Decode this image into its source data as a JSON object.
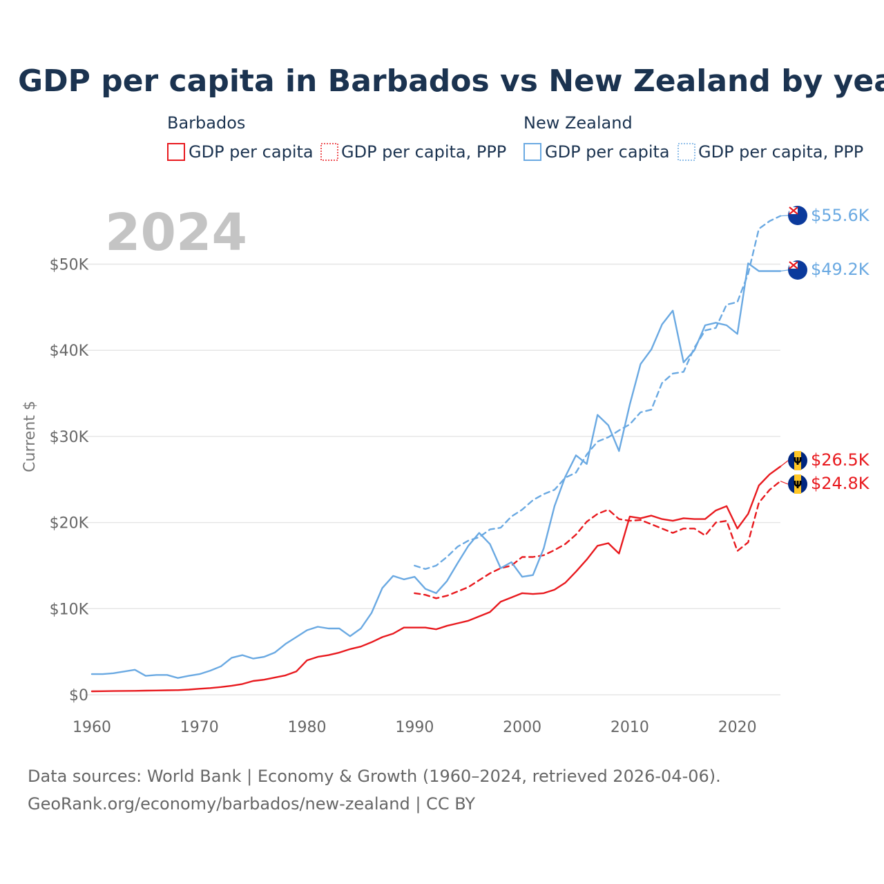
{
  "title": "GDP per capita in Barbados vs New Zealand by year",
  "year_watermark": "2024",
  "colors": {
    "barbados": "#e8191e",
    "new_zealand": "#6aa9e2",
    "title": "#1b3350"
  },
  "legend": {
    "barbados": {
      "title": "Barbados",
      "gdp": "GDP per capita",
      "ppp": "GDP per capita, PPP"
    },
    "new_zealand": {
      "title": "New Zealand",
      "gdp": "GDP per capita",
      "ppp": "GDP per capita, PPP"
    }
  },
  "end_labels": {
    "nz_ppp": "$55.6K",
    "nz_gdp": "$49.2K",
    "bb_gdp": "$26.5K",
    "bb_ppp": "$24.8K"
  },
  "source": {
    "line1": "Data sources: World Bank | Economy & Growth (1960–2024, retrieved 2026-04-06).",
    "line2": "GeoRank.org/economy/barbados/new-zealand | CC BY"
  },
  "chart_data": {
    "type": "line",
    "title": "GDP per capita in Barbados vs New Zealand by year",
    "xlabel": "",
    "ylabel": "Current $",
    "xlim": [
      1960,
      2024
    ],
    "ylim": [
      0,
      55600
    ],
    "x_ticks": [
      1960,
      1970,
      1980,
      1990,
      2000,
      2010,
      2020
    ],
    "y_ticks": [
      {
        "value": 0,
        "label": "$0"
      },
      {
        "value": 10000,
        "label": "$10K"
      },
      {
        "value": 20000,
        "label": "$20K"
      },
      {
        "value": 30000,
        "label": "$30K"
      },
      {
        "value": 40000,
        "label": "$40K"
      },
      {
        "value": 50000,
        "label": "$50K"
      }
    ],
    "grid": true,
    "series": [
      {
        "name": "Barbados GDP per capita",
        "key": "bb_gdp",
        "country": "barbados",
        "dash": false,
        "start_year": 1960,
        "values": [
          400,
          420,
          430,
          450,
          460,
          480,
          500,
          520,
          540,
          600,
          700,
          780,
          900,
          1050,
          1250,
          1600,
          1750,
          2000,
          2250,
          2700,
          4000,
          4400,
          4600,
          4900,
          5300,
          5600,
          6100,
          6700,
          7100,
          7800,
          7800,
          7800,
          7600,
          8000,
          8300,
          8600,
          9100,
          9600,
          10800,
          11300,
          11800,
          11700,
          11800,
          12200,
          13000,
          14300,
          15700,
          17300,
          17600,
          16400,
          20700,
          20500,
          20800,
          20400,
          20200,
          20500,
          20400,
          20400,
          21400,
          21900,
          19300,
          21000,
          24300,
          25600,
          26500
        ]
      },
      {
        "name": "Barbados GDP per capita, PPP",
        "key": "bb_ppp",
        "country": "barbados",
        "dash": true,
        "start_year": 1990,
        "values": [
          11800,
          11600,
          11200,
          11500,
          12000,
          12500,
          13300,
          14100,
          14700,
          15000,
          16000,
          16000,
          16200,
          16800,
          17500,
          18600,
          20100,
          21000,
          21500,
          20400,
          20200,
          20300,
          19800,
          19300,
          18800,
          19300,
          19300,
          18500,
          20000,
          20200,
          16700,
          17700,
          22300,
          23800,
          24800
        ]
      },
      {
        "name": "New Zealand GDP per capita",
        "key": "nz_gdp",
        "country": "new_zealand",
        "dash": false,
        "start_year": 1960,
        "values": [
          2400,
          2400,
          2500,
          2700,
          2900,
          2200,
          2300,
          2300,
          1950,
          2200,
          2400,
          2800,
          3300,
          4300,
          4600,
          4200,
          4400,
          4900,
          5900,
          6700,
          7500,
          7900,
          7700,
          7700,
          6800,
          7700,
          9500,
          12400,
          13800,
          13400,
          13700,
          12300,
          11800,
          13200,
          15300,
          17300,
          18800,
          17500,
          14700,
          15400,
          13700,
          13900,
          17000,
          21900,
          25300,
          27800,
          26800,
          32500,
          31300,
          28300,
          33700,
          38400,
          40100,
          43000,
          44600,
          38600,
          40000,
          42900,
          43200,
          42900,
          41900,
          50100,
          49200,
          49200,
          49200
        ]
      },
      {
        "name": "New Zealand GDP per capita, PPP",
        "key": "nz_ppp",
        "country": "new_zealand",
        "dash": true,
        "start_year": 1990,
        "values": [
          15000,
          14600,
          15000,
          16000,
          17200,
          17900,
          18300,
          19200,
          19400,
          20700,
          21500,
          22600,
          23300,
          23800,
          25200,
          25800,
          27900,
          29400,
          29900,
          30700,
          31400,
          32800,
          33100,
          36200,
          37300,
          37500,
          40300,
          42300,
          42600,
          45300,
          45600,
          48900,
          54100,
          55000,
          55600
        ]
      }
    ]
  }
}
